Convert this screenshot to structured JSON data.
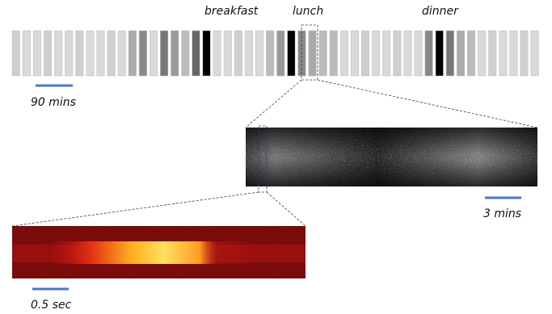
{
  "meals": [
    "breakfast",
    "lunch",
    "dinner"
  ],
  "scale_bars": [
    "90 mins",
    "3 mins",
    "0.5 sec"
  ]
}
